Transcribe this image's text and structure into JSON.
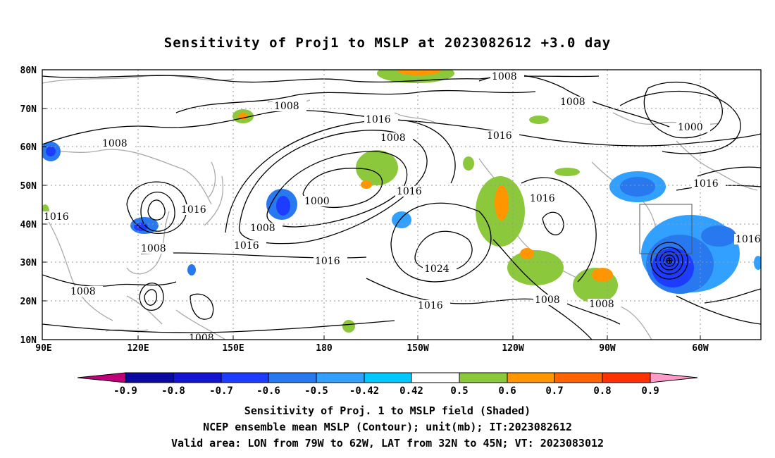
{
  "title": "Sensitivity of Proj1 to MSLP at 2023082612 +3.0 day",
  "map": {
    "lat_labels": [
      "80N",
      "70N",
      "60N",
      "50N",
      "40N",
      "30N",
      "20N",
      "10N"
    ],
    "lon_labels": [
      "90E",
      "120E",
      "150E",
      "180",
      "150W",
      "120W",
      "90W",
      "60W"
    ],
    "contour_labels": [
      "1008",
      "1008",
      "1008",
      "1016",
      "1016",
      "1008",
      "1008",
      "1016",
      "1016",
      "1000",
      "1016",
      "1016",
      "1016",
      "1000",
      "1016",
      "1008",
      "1016",
      "1008",
      "1016",
      "1024",
      "1016",
      "1008",
      "1008",
      "1008",
      "1008"
    ],
    "valid_area": {
      "lon": [
        -79,
        -62
      ],
      "lat": [
        32,
        45
      ]
    },
    "cyclone_center": {
      "lon": -67,
      "lat": 30.5
    }
  },
  "colorbar": {
    "labels": [
      "-0.9",
      "-0.8",
      "-0.7",
      "-0.6",
      "-0.5",
      "-0.42",
      "0.42",
      "0.5",
      "0.6",
      "0.7",
      "0.8",
      "0.9"
    ],
    "colors": [
      "#c0007a",
      "#0a0aa0",
      "#1414d2",
      "#1e3cff",
      "#2878f0",
      "#32a0ff",
      "#00c8ff",
      "#ffffff",
      "#8cc83c",
      "#ff9600",
      "#ff6400",
      "#ff3200",
      "#ff0000",
      "#ff9bc8"
    ]
  },
  "captions": {
    "line1": "Sensitivity of Proj. 1 to MSLP field (Shaded)",
    "line2": "NCEP ensemble mean MSLP (Contour); unit(mb); IT:2023082612",
    "line3": "Valid area: LON from 79W to 62W, LAT from 32N to 45N; VT: 2023083012"
  }
}
